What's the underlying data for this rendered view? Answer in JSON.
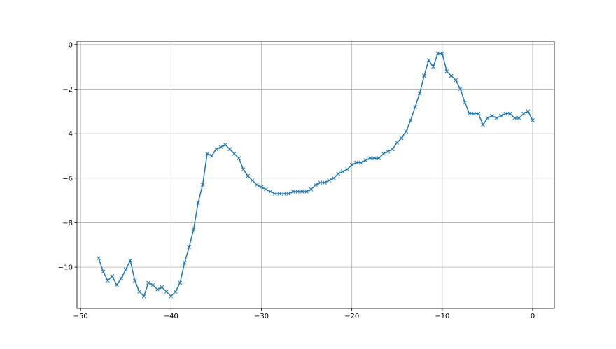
{
  "chart_data": {
    "type": "line",
    "title": "",
    "xlabel": "",
    "ylabel": "",
    "xlim": [
      -50.4,
      2.4
    ],
    "ylim": [
      -11.85,
      0.15
    ],
    "xticks": [
      -50,
      -40,
      -30,
      -20,
      -10,
      0
    ],
    "yticks": [
      -10,
      -8,
      -6,
      -4,
      -2,
      0
    ],
    "grid": true,
    "marker": "x",
    "color": "#1f77b4",
    "x_start": -48,
    "x_step": 0.5,
    "series": [
      {
        "values": [
          -9.6,
          -10.2,
          -10.6,
          -10.4,
          -10.8,
          -10.5,
          -10.1,
          -9.7,
          -10.6,
          -11.1,
          -11.3,
          -10.7,
          -10.8,
          -11.0,
          -10.9,
          -11.1,
          -11.3,
          -11.1,
          -10.7,
          -9.8,
          -9.1,
          -8.3,
          -7.1,
          -6.3,
          -4.9,
          -5.0,
          -4.7,
          -4.6,
          -4.5,
          -4.7,
          -4.9,
          -5.1,
          -5.6,
          -5.9,
          -6.1,
          -6.3,
          -6.4,
          -6.5,
          -6.6,
          -6.7,
          -6.7,
          -6.7,
          -6.7,
          -6.6,
          -6.6,
          -6.6,
          -6.6,
          -6.5,
          -6.3,
          -6.2,
          -6.2,
          -6.1,
          -6.0,
          -5.8,
          -5.7,
          -5.6,
          -5.4,
          -5.3,
          -5.3,
          -5.2,
          -5.1,
          -5.1,
          -5.1,
          -4.9,
          -4.8,
          -4.7,
          -4.4,
          -4.2,
          -3.9,
          -3.4,
          -2.8,
          -2.2,
          -1.4,
          -0.7,
          -1.0,
          -0.4,
          -0.4,
          -1.2,
          -1.4,
          -1.6,
          -2.0,
          -2.6,
          -3.1,
          -3.1,
          -3.1,
          -3.6,
          -3.3,
          -3.2,
          -3.3,
          -3.2,
          -3.1,
          -3.1,
          -3.3,
          -3.3,
          -3.1,
          -3.0,
          -3.4
        ]
      }
    ]
  }
}
